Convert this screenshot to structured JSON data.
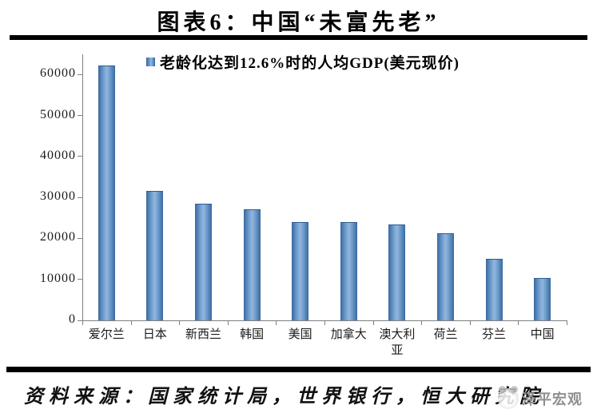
{
  "page": {
    "title": "图表6：中国“未富先老”",
    "source_note": "资料来源：国家统计局，世界银行，恒大研究院",
    "watermark": "泽平宏观"
  },
  "chart_data": {
    "type": "bar",
    "title": "图表6：中国“未富先老”",
    "legend": [
      "老龄化达到12.6%时的人均GDP(美元现价)"
    ],
    "legend_position": "top-center",
    "categories": [
      "爱尔兰",
      "日本",
      "新西兰",
      "韩国",
      "美国",
      "加拿大",
      "澳大利亚",
      "荷兰",
      "芬兰",
      "中国"
    ],
    "values": [
      62000,
      31400,
      28300,
      27000,
      23700,
      23700,
      23300,
      21100,
      14800,
      10100
    ],
    "xlabel": "",
    "ylabel": "",
    "ylim": [
      0,
      65000
    ],
    "yticks": [
      0,
      10000,
      20000,
      30000,
      40000,
      50000,
      60000
    ],
    "grid": false,
    "bar_color_mid": "#8fb4de",
    "bar_color_edge": "#38699f",
    "axis_color": "#808080"
  }
}
